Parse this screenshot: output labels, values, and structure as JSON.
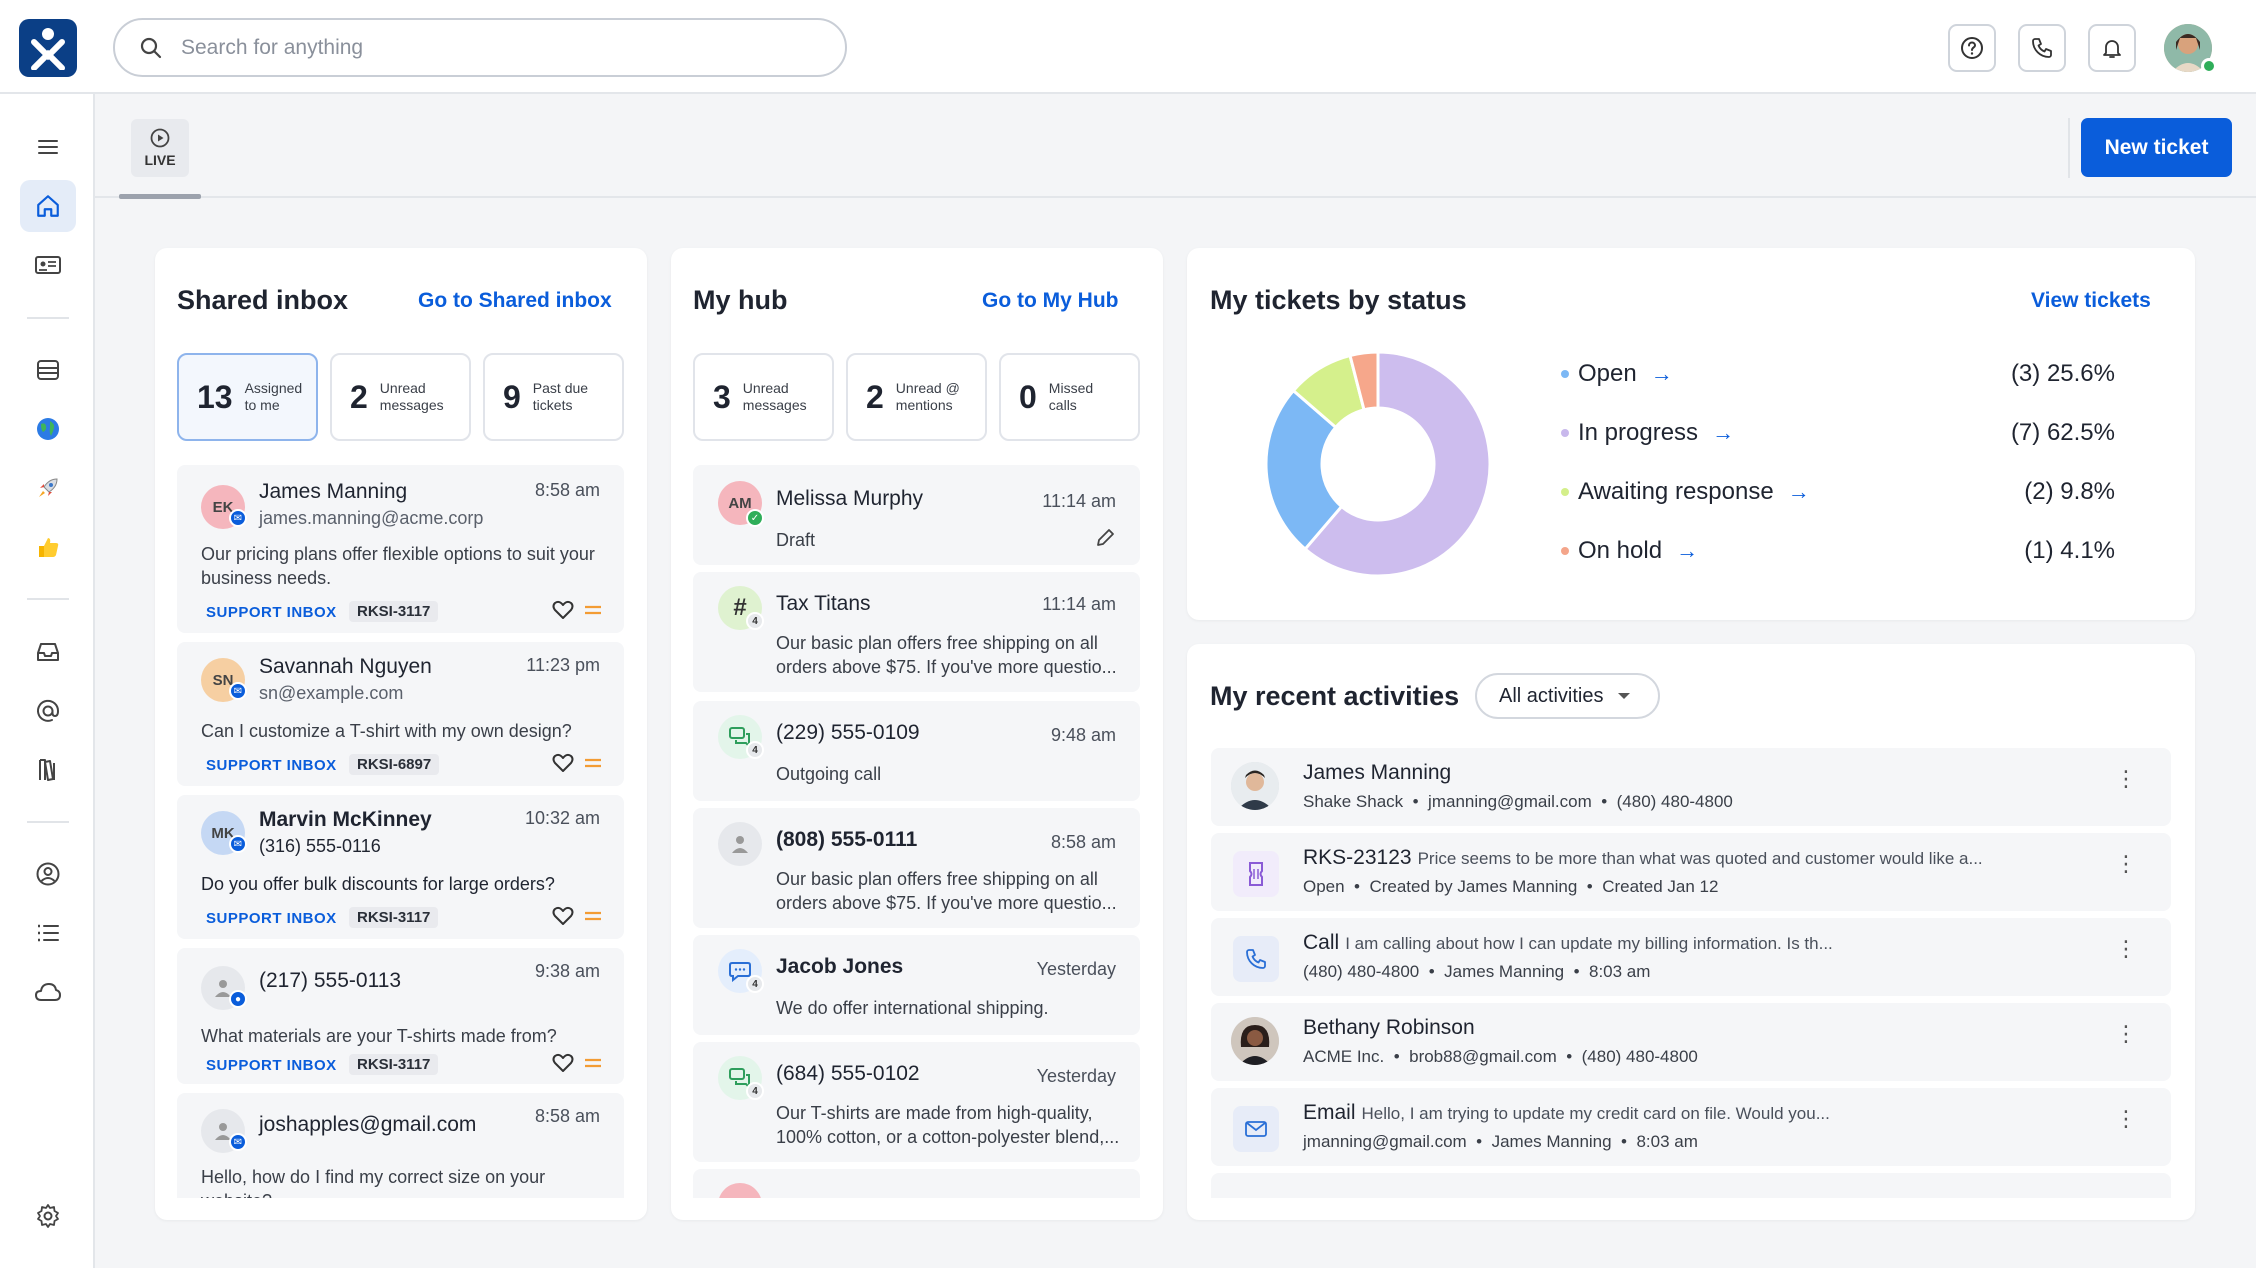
{
  "app": {
    "search_placeholder": "Search for anything",
    "live_label": "LIVE",
    "new_ticket_label": "New ticket"
  },
  "shared_inbox": {
    "title": "Shared inbox",
    "link": "Go to Shared inbox",
    "stats": [
      {
        "num": "13",
        "label": "Assigned to me"
      },
      {
        "num": "2",
        "label": "Unread messages"
      },
      {
        "num": "9",
        "label": "Past due tickets"
      }
    ],
    "items": [
      {
        "initials": "EK",
        "name": "James Manning",
        "sub": "james.manning@acme.corp",
        "time": "8:58 am",
        "message": "Our pricing plans offer flexible options to suit your business needs.",
        "tag": "SUPPORT INBOX",
        "ticket": "RKSI-3117"
      },
      {
        "initials": "SN",
        "name": "Savannah Nguyen",
        "sub": "sn@example.com",
        "time": "11:23 pm",
        "message": "Can I customize a T-shirt with my own design?",
        "tag": "SUPPORT INBOX",
        "ticket": "RKSI-6897"
      },
      {
        "initials": "MK",
        "name": "Marvin McKinney",
        "sub": "(316) 555-0116",
        "time": "10:32 am",
        "message": "Do you offer bulk discounts for large orders?",
        "tag": "SUPPORT INBOX",
        "ticket": "RKSI-3117"
      },
      {
        "initials": "",
        "name": "(217) 555-0113",
        "sub": "",
        "time": "9:38 am",
        "message": "What materials are your T-shirts made from?",
        "tag": "SUPPORT INBOX",
        "ticket": "RKSI-3117"
      },
      {
        "initials": "",
        "name": "joshapples@gmail.com",
        "sub": "",
        "time": "8:58 am",
        "message": "Hello, how do I find my correct size on your website?",
        "tag": "",
        "ticket": ""
      }
    ]
  },
  "my_hub": {
    "title": "My hub",
    "link": "Go to My Hub",
    "stats": [
      {
        "num": "3",
        "label": "Unread messages"
      },
      {
        "num": "2",
        "label": "Unread @ mentions"
      },
      {
        "num": "0",
        "label": "Missed calls"
      }
    ],
    "items": [
      {
        "avatar": "AM",
        "name": "Melissa Murphy",
        "time": "11:14 am",
        "message": "Draft"
      },
      {
        "avatar": "#",
        "name": "Tax Titans",
        "time": "11:14 am",
        "message": "Our basic plan offers free shipping on all orders above $75. If you've more questio..."
      },
      {
        "avatar": "chat",
        "name": "(229) 555-0109",
        "time": "9:48 am",
        "message": "Outgoing call"
      },
      {
        "avatar": "person",
        "name": "(808) 555-0111",
        "time": "8:58 am",
        "message": "Our basic plan offers free shipping on all orders above $75. If you've more questio..."
      },
      {
        "avatar": "chat",
        "name": "Jacob Jones",
        "time": "Yesterday",
        "message": "We do offer international shipping."
      },
      {
        "avatar": "chat",
        "name": "(684) 555-0102",
        "time": "Yesterday",
        "message": "Our T-shirts are made from high-quality, 100% cotton, or a cotton-polyester blend,..."
      }
    ],
    "badge_count": "4"
  },
  "tickets_status": {
    "title": "My tickets by status",
    "link": "View tickets",
    "rows": [
      {
        "label": "Open",
        "count": "(3) 25.6%",
        "color": "#7cb8f5"
      },
      {
        "label": "In progress",
        "count": "(7) 62.5%",
        "color": "#c8b8ec"
      },
      {
        "label": "Awaiting response",
        "count": "(2) 9.8%",
        "color": "#d4ef8a"
      },
      {
        "label": "On hold",
        "count": "(1) 4.1%",
        "color": "#f4a58a"
      }
    ]
  },
  "chart_data": {
    "type": "pie",
    "categories": [
      "Open",
      "In progress",
      "Awaiting response",
      "On hold"
    ],
    "values": [
      25.6,
      62.5,
      9.8,
      4.1
    ],
    "counts": [
      3,
      7,
      2,
      1
    ],
    "colors": [
      "#7cb8f5",
      "#cdbdee",
      "#d5f08c",
      "#f6a78b"
    ],
    "donut": true
  },
  "recent": {
    "title": "My recent activities",
    "filter": "All activities",
    "items": [
      {
        "kind": "person",
        "title": "James Manning",
        "small": "",
        "line2": [
          "Shake Shack",
          "jmanning@gmail.com",
          "(480) 480-4800"
        ]
      },
      {
        "kind": "ticket",
        "title": "RKS-23123",
        "small": "Price seems to be more than what was quoted and customer would like a...",
        "line2": [
          "Open",
          "Created by James Manning",
          "Created Jan 12"
        ]
      },
      {
        "kind": "call",
        "title": "Call",
        "small": "I am calling about how I can update my billing information. Is th...",
        "line2": [
          "(480) 480-4800",
          "James Manning",
          "8:03 am"
        ]
      },
      {
        "kind": "person2",
        "title": "Bethany Robinson",
        "small": "",
        "line2": [
          "ACME Inc.",
          "brob88@gmail.com",
          "(480) 480-4800"
        ]
      },
      {
        "kind": "email",
        "title": "Email",
        "small": "Hello, I am trying to update my credit card on file. Would you...",
        "line2": [
          "jmanning@gmail.com",
          "James Manning",
          "8:03 am"
        ]
      }
    ]
  }
}
